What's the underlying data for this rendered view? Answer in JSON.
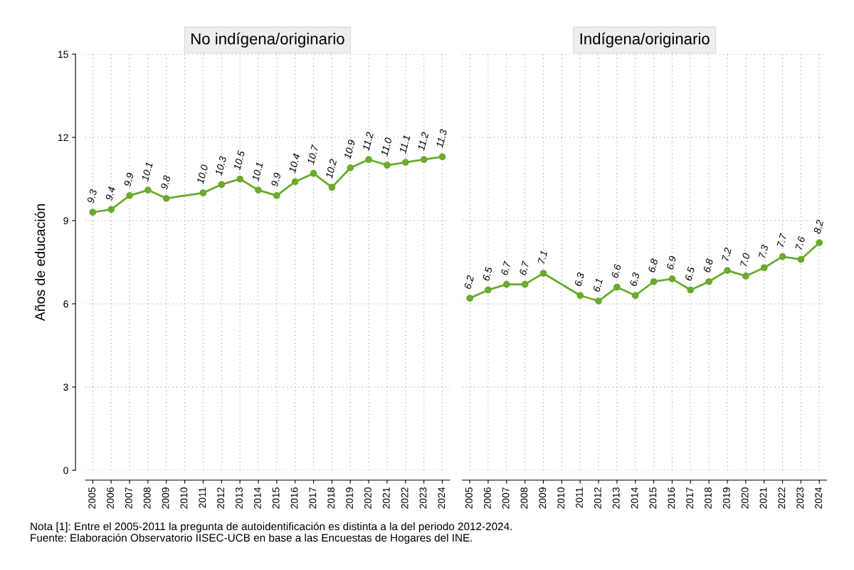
{
  "chart_data": [
    {
      "type": "line",
      "title": "No indígena/originario",
      "ylabel": "Años de educación",
      "x": [
        2005,
        2006,
        2007,
        2008,
        2009,
        2011,
        2012,
        2013,
        2014,
        2015,
        2016,
        2017,
        2018,
        2019,
        2020,
        2021,
        2022,
        2023,
        2024
      ],
      "series": [
        {
          "color": "#6aaa2e",
          "values": [
            9.3,
            9.4,
            9.9,
            10.1,
            9.8,
            10.0,
            10.3,
            10.5,
            10.1,
            9.9,
            10.4,
            10.7,
            10.2,
            10.9,
            11.2,
            11.0,
            11.1,
            11.2,
            11.3
          ],
          "value_labels": [
            "9.3",
            "9.4",
            "9.9",
            "10.1",
            "9.8",
            "10.0",
            "10.3",
            "10.5",
            "10.1",
            "9.9",
            "10.4",
            "10.7",
            "10.2",
            "10.9",
            "11.2",
            "11.0",
            "11.1",
            "11.2",
            "11.3"
          ]
        }
      ],
      "xlim": [
        2004.6,
        2024.4
      ],
      "xticks": [
        2005,
        2006,
        2007,
        2008,
        2009,
        2010,
        2011,
        2012,
        2013,
        2014,
        2015,
        2016,
        2017,
        2018,
        2019,
        2020,
        2021,
        2022,
        2023,
        2024
      ],
      "ylim": [
        0,
        15
      ],
      "yticks": [
        0,
        3,
        6,
        9,
        12,
        15
      ],
      "grid": true,
      "marker": "circle",
      "line_style": "solid"
    },
    {
      "type": "line",
      "title": "Indígena/originario",
      "x": [
        2005,
        2006,
        2007,
        2008,
        2009,
        2011,
        2012,
        2013,
        2014,
        2015,
        2016,
        2017,
        2018,
        2019,
        2020,
        2021,
        2022,
        2023,
        2024
      ],
      "series": [
        {
          "color": "#6aaa2e",
          "values": [
            6.2,
            6.5,
            6.7,
            6.7,
            7.1,
            6.3,
            6.1,
            6.6,
            6.3,
            6.8,
            6.9,
            6.5,
            6.8,
            7.2,
            7.0,
            7.3,
            7.7,
            7.6,
            8.2
          ],
          "value_labels": [
            "6.2",
            "6.5",
            "6.7",
            "6.7",
            "7.1",
            "6.3",
            "6.1",
            "6.6",
            "6.3",
            "6.8",
            "6.9",
            "6.5",
            "6.8",
            "7.2",
            "7.0",
            "7.3",
            "7.7",
            "7.6",
            "8.2"
          ]
        }
      ],
      "xlim": [
        2004.6,
        2024.4
      ],
      "xticks": [
        2005,
        2006,
        2007,
        2008,
        2009,
        2010,
        2011,
        2012,
        2013,
        2014,
        2015,
        2016,
        2017,
        2018,
        2019,
        2020,
        2021,
        2022,
        2023,
        2024
      ],
      "ylim": [
        0,
        15
      ],
      "yticks": [
        0,
        3,
        6,
        9,
        12,
        15
      ],
      "grid": true,
      "marker": "circle",
      "line_style": "solid",
      "tick_labels": "x",
      "annotations": [
        "Nota [1]: Entre el 2005-2011 la pregunta de autoidentificación es distinta a la del periodo 2012-2024.",
        "Fuente: Elaboración Observatorio IISEC-UCB en base a las Encuestas de Hogares del INE."
      ]
    }
  ]
}
